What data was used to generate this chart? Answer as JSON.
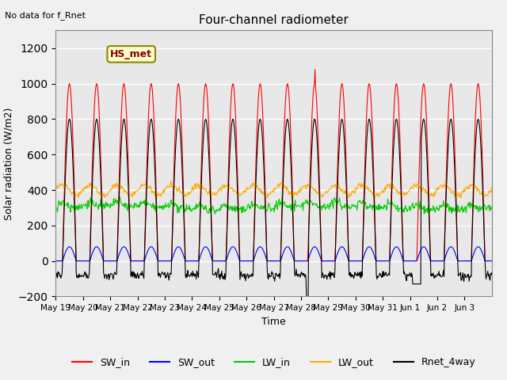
{
  "title": "Four-channel radiometer",
  "top_left_text": "No data for f_Rnet",
  "ylabel": "Solar radiation (W/m2)",
  "xlabel": "Time",
  "ylim": [
    -200,
    1300
  ],
  "yticks": [
    -200,
    0,
    200,
    400,
    600,
    800,
    1000,
    1200
  ],
  "n_days": 16,
  "xtick_labels": [
    "May 19",
    "May 20",
    "May 21",
    "May 22",
    "May 23",
    "May 24",
    "May 25",
    "May 26",
    "May 27",
    "May 28",
    "May 29",
    "May 30",
    "May 31",
    "Jun 1",
    "Jun 2",
    "Jun 3"
  ],
  "legend_labels": [
    "SW_in",
    "SW_out",
    "LW_in",
    "LW_out",
    "Rnet_4way"
  ],
  "legend_colors": [
    "#ff0000",
    "#0000ff",
    "#00cc00",
    "#ffaa00",
    "#000000"
  ],
  "box_label": "HS_met",
  "box_facecolor": "#ffffcc",
  "box_edgecolor": "#888800",
  "background_color": "#f0f0f0",
  "plot_bg_color": "#e8e8e8"
}
